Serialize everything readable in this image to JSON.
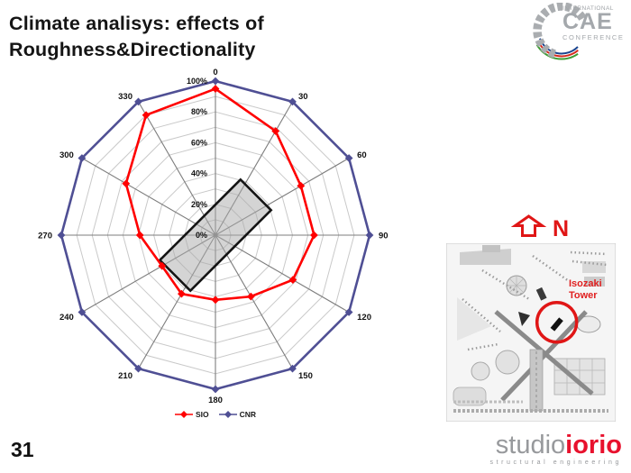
{
  "title": {
    "line1": "Climate analisys: effects of",
    "line2": "Roughness&Directionality"
  },
  "page_number": "31",
  "cae_logo": {
    "top": "INTERNATIONAL",
    "middle": "CAE",
    "bottom": "CONFERENCE"
  },
  "studio_logo": {
    "name_gray": "studio",
    "name_red": "iorio",
    "tagline": "structural engineering"
  },
  "site_map": {
    "north_label": "N",
    "annotation_line1": "Isozaki",
    "annotation_line2": "Tower"
  },
  "chart_data": {
    "type": "radar",
    "title": "",
    "angle_unit": "degrees_clockwise_from_north",
    "angle_ticks_deg": [
      0,
      30,
      60,
      90,
      120,
      150,
      180,
      210,
      240,
      270,
      300,
      330
    ],
    "rlim": [
      0,
      100
    ],
    "ring_step_pct": 10,
    "radial_ticks": [
      {
        "pct": 0,
        "label": "0%"
      },
      {
        "pct": 20,
        "label": "20%"
      },
      {
        "pct": 40,
        "label": "40%"
      },
      {
        "pct": 60,
        "label": "60%"
      },
      {
        "pct": 80,
        "label": "80%"
      },
      {
        "pct": 100,
        "label": "100%"
      }
    ],
    "grid": {
      "ring_color": "#c9c9c9",
      "spoke_color": "#7d7d7d"
    },
    "legend_position": "bottom",
    "series": [
      {
        "name": "SIO",
        "color": "#ff0000",
        "values_pct": [
          95,
          78,
          64,
          64,
          58,
          46,
          42,
          44,
          40,
          49,
          67,
          90
        ]
      },
      {
        "name": "CNR",
        "color": "#4f4f94",
        "values_pct": [
          100,
          100,
          100,
          100,
          100,
          100,
          100,
          100,
          100,
          100,
          100,
          100
        ]
      }
    ],
    "footprint_overlay": {
      "shape": "rectangle",
      "long_pct": 74,
      "short_pct": 28,
      "rotation_deg": 45,
      "fill": "#a9a9a9",
      "fill_opacity": 0.5,
      "stroke": "#141414"
    }
  }
}
